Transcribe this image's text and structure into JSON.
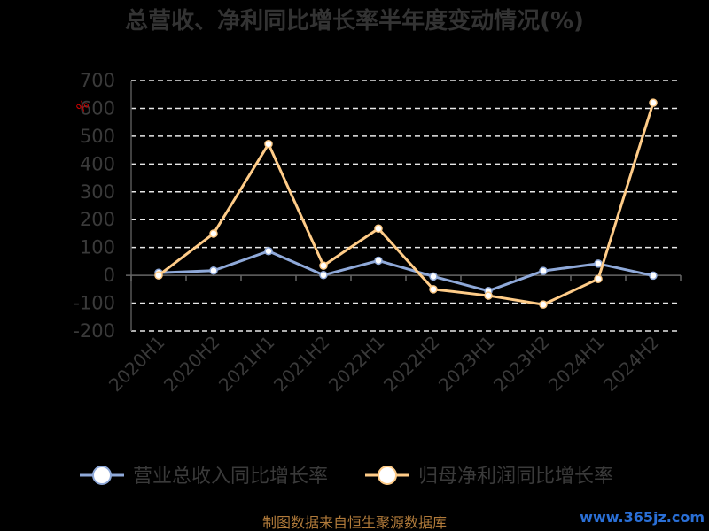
{
  "chart_data": {
    "type": "line",
    "title": "总营收、净利同比增长率半年度变动情况(%)",
    "ylabel": "%",
    "xlabel": "",
    "categories": [
      "2020H1",
      "2020H2",
      "2021H1",
      "2021H2",
      "2022H1",
      "2022H2",
      "2023H1",
      "2023H2",
      "2024H1",
      "2024H2"
    ],
    "ylim": [
      -200,
      700
    ],
    "yticks": [
      -200,
      -100,
      0,
      100,
      200,
      300,
      400,
      500,
      600,
      700
    ],
    "grid": true,
    "legend_position": "bottom",
    "series": [
      {
        "name": "营业总收入同比增长率",
        "color": "#8fa9d9",
        "values": [
          9,
          17,
          87,
          1,
          53,
          -4,
          -56,
          16,
          42,
          -1
        ]
      },
      {
        "name": "归母净利润同比增长率",
        "color": "#ffcc88",
        "values": [
          0,
          150,
          472,
          35,
          168,
          -50,
          -73,
          -105,
          -13,
          620
        ]
      }
    ]
  },
  "source": "制图数据来自恒生聚源数据库",
  "watermark": "www.365jz.com"
}
